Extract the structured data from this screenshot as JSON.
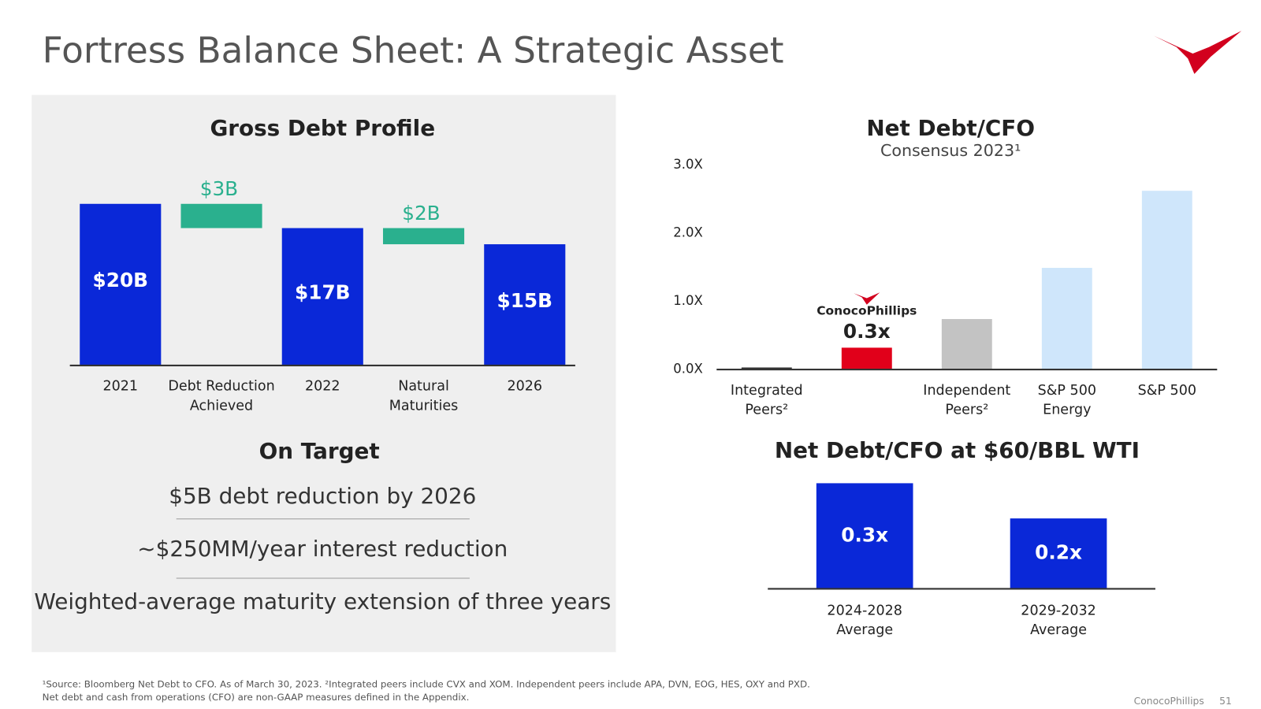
{
  "header": {
    "title": "Fortress Balance Sheet: A Strategic Asset"
  },
  "chart_data": [
    {
      "type": "waterfall",
      "title": "Gross Debt Profile",
      "categories": [
        "2021",
        "Debt Reduction Achieved",
        "2022",
        "Natural Maturities",
        "2026"
      ],
      "values": [
        20,
        3,
        17,
        2,
        15
      ],
      "value_labels": [
        "$20B",
        "$3B",
        "$17B",
        "$2B",
        "$15B"
      ],
      "measure": [
        "total",
        "decrease",
        "total",
        "decrease",
        "total"
      ],
      "colors": {
        "total": "#0a28d8",
        "decrease": "#2ab08e"
      }
    },
    {
      "type": "bar",
      "title": "Net Debt/CFO",
      "subtitle": "Consensus 2023¹",
      "categories": [
        "Integrated Peers²",
        "ConocoPhillips",
        "Independent Peers²",
        "S&P 500 Energy",
        "S&P 500"
      ],
      "values": [
        0.03,
        0.32,
        0.74,
        1.49,
        2.62
      ],
      "value_labels": [
        null,
        "0.3x",
        null,
        null,
        null
      ],
      "colors": [
        "#333333",
        "#e1001a",
        "#c3c3c3",
        "#cfe6fb",
        "#cfe6fb"
      ],
      "ylim": [
        0,
        3
      ],
      "yticks": [
        {
          "value": 0,
          "label": "0.0X"
        },
        {
          "value": 1,
          "label": "1.0X"
        },
        {
          "value": 2,
          "label": "2.0X"
        },
        {
          "value": 3,
          "label": "3.0X"
        }
      ]
    },
    {
      "type": "bar",
      "title": "Net Debt/CFO at $60/BBL WTI",
      "categories": [
        "2024-2028 Average",
        "2029-2032 Average"
      ],
      "values": [
        0.3,
        0.2
      ],
      "value_labels": [
        "0.3x",
        "0.2x"
      ],
      "colors": [
        "#0a28d8",
        "#0a28d8"
      ]
    }
  ],
  "on_target": {
    "title": "On Target",
    "items": [
      "$5B debt reduction by 2026",
      "~$250MM/year interest reduction",
      "Weighted-average maturity extension of three years"
    ]
  },
  "footnotes": [
    "¹Source: Bloomberg Net Debt to CFO. As of March 30, 2023. ²Integrated peers include CVX and XOM. Independent peers include APA, DVN, EOG, HES, OXY and PXD.",
    "Net debt and cash from operations (CFO) are non-GAAP measures defined in the Appendix."
  ],
  "footer": {
    "company": "ConocoPhillips",
    "page": "51"
  }
}
